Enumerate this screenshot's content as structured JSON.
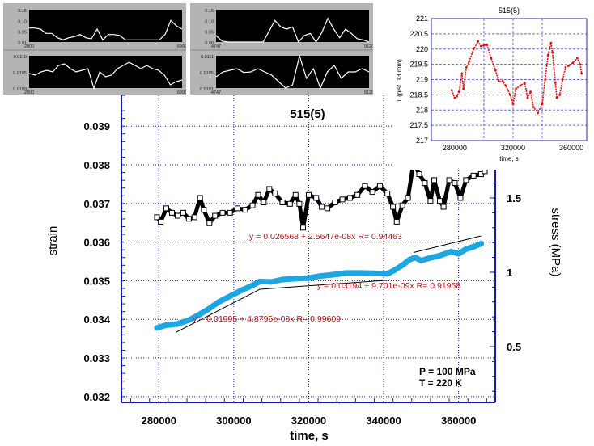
{
  "chart_data": [
    {
      "type": "scatter",
      "title": "515(5)",
      "xlabel": "time, s",
      "ylabel": "strain",
      "y2label": "stress (MPa)",
      "xlim": [
        270000,
        369800
      ],
      "ylim": [
        0.03185,
        0.0398
      ],
      "y2lim": [
        0.125,
        2.19
      ],
      "xticks": [
        280000,
        300000,
        320000,
        340000,
        360000
      ],
      "yticks": [
        0.032,
        0.033,
        0.034,
        0.035,
        0.036,
        0.037,
        0.038,
        0.039
      ],
      "y2ticks": [
        0.5,
        1,
        1.5
      ],
      "grid": true,
      "annotations": [
        "P = 100 MPa",
        "T = 220 K"
      ],
      "series": [
        {
          "name": "stress",
          "axis": "right",
          "color": "#000000",
          "marker": "open-square",
          "x": [
            279500,
            280500,
            282000,
            283500,
            285000,
            286500,
            288000,
            289500,
            291000,
            292000,
            293500,
            295000,
            297000,
            299000,
            301000,
            303000,
            305000,
            306500,
            308000,
            309500,
            311000,
            313000,
            315000,
            316500,
            317500,
            318500,
            320000,
            322000,
            323500,
            325000,
            327000,
            329000,
            331000,
            333000,
            335000,
            337000,
            339000,
            341000,
            342500,
            343500,
            345000,
            346500,
            348000,
            349500,
            351000,
            352500,
            353500,
            355000,
            356000,
            357500,
            359000,
            360500,
            362000,
            364000,
            366000,
            367000
          ],
          "values": [
            1.37,
            1.34,
            1.43,
            1.4,
            1.38,
            1.4,
            1.36,
            1.37,
            1.5,
            1.42,
            1.33,
            1.38,
            1.4,
            1.4,
            1.43,
            1.42,
            1.45,
            1.52,
            1.47,
            1.56,
            1.53,
            1.47,
            1.46,
            1.52,
            1.46,
            1.3,
            1.52,
            1.5,
            1.44,
            1.43,
            1.47,
            1.49,
            1.5,
            1.52,
            1.58,
            1.54,
            1.58,
            1.53,
            1.44,
            1.34,
            1.45,
            1.5,
            1.74,
            1.66,
            1.6,
            1.48,
            1.62,
            1.48,
            1.44,
            1.62,
            1.6,
            1.5,
            1.62,
            1.65,
            1.66,
            1.68
          ]
        },
        {
          "name": "strain",
          "axis": "left",
          "color": "#1ea6e0",
          "marker": "filled-circle",
          "x": [
            279500,
            282000,
            285000,
            288000,
            290000,
            293000,
            296000,
            299000,
            302000,
            305000,
            307000,
            310000,
            313000,
            316000,
            320000,
            323000,
            326000,
            330000,
            334000,
            338000,
            341000,
            342500,
            345000,
            347000,
            348500,
            350000,
            352000,
            355000,
            358000,
            360000,
            362000,
            364000,
            366000
          ],
          "values": [
            0.03378,
            0.03385,
            0.03388,
            0.03398,
            0.03408,
            0.03425,
            0.03445,
            0.0346,
            0.03475,
            0.03488,
            0.03498,
            0.03497,
            0.03503,
            0.03505,
            0.03507,
            0.03512,
            0.03515,
            0.0352,
            0.0352,
            0.03519,
            0.03518,
            0.03525,
            0.0354,
            0.03555,
            0.0356,
            0.03552,
            0.03558,
            0.03565,
            0.03575,
            0.0357,
            0.03582,
            0.03588,
            0.03596
          ]
        }
      ],
      "fits": [
        {
          "label": "y = 0.01995 + 4.8795e-08x   R= 0.99609",
          "x": [
            284500,
            307000
          ],
          "y": [
            0.03366,
            0.03478
          ]
        },
        {
          "label": "y = 0.03194 + 9.701e-09x   R= 0.91958",
          "x": [
            307000,
            342000
          ],
          "y": [
            0.03478,
            0.03502
          ]
        },
        {
          "label": "y = 0.026568 + 2.5647e-08x   R= 0.94463",
          "x": [
            348000,
            366000
          ],
          "y": [
            0.03573,
            0.03616
          ]
        }
      ]
    },
    {
      "type": "scatter",
      "title": "515(5)",
      "xlabel": "time, s",
      "ylabel": "T (pist. 13 mm)",
      "xlim": [
        264000,
        370500
      ],
      "ylim": [
        217.0,
        221.0
      ],
      "xticks": [
        280000,
        320000,
        360000
      ],
      "yticks": [
        217.0,
        217.5,
        218.0,
        218.5,
        219.0,
        219.5,
        220.0,
        220.5,
        221.0
      ],
      "grid": true,
      "series": [
        {
          "name": "T",
          "color": "#e01010",
          "x": [
            278000,
            280000,
            281500,
            283000,
            285000,
            286000,
            288000,
            290000,
            293000,
            296000,
            298000,
            300000,
            302000,
            305000,
            308000,
            310000,
            313000,
            315000,
            318000,
            320000,
            322000,
            325000,
            328000,
            330000,
            332000,
            334000,
            337000,
            340000,
            342000,
            344000,
            346000,
            347000,
            349000,
            350000,
            352000,
            354000,
            356000,
            358000,
            361000,
            364000,
            366000,
            367000
          ],
          "values": [
            218.65,
            218.4,
            218.45,
            218.6,
            219.2,
            218.7,
            219.4,
            219.6,
            220.0,
            220.25,
            220.1,
            220.12,
            220.15,
            219.7,
            219.3,
            218.95,
            218.95,
            218.8,
            218.5,
            218.2,
            218.7,
            218.8,
            218.9,
            218.4,
            218.6,
            218.1,
            217.9,
            218.2,
            219.0,
            219.8,
            220.2,
            219.9,
            218.9,
            218.4,
            218.5,
            219.0,
            219.4,
            219.45,
            219.55,
            219.7,
            219.5,
            219.2
          ]
        }
      ]
    },
    {
      "type": "line",
      "panel": "thumb-a-top",
      "yticks": [
        "0.15",
        "0.10",
        "0.05",
        "0.01"
      ],
      "xticks": [
        "2000",
        "6999"
      ],
      "ylim": [
        0.0,
        0.15
      ],
      "values": [
        0.065,
        0.065,
        0.06,
        0.04,
        0.04,
        0.02,
        0.01,
        0.02,
        0.025,
        0.035,
        0.02,
        0.015,
        0.06,
        0.01,
        0.035,
        0.035,
        0.03,
        0.01,
        0.01,
        0.01,
        0.01,
        0.01,
        0.01,
        0.01,
        0.035,
        0.1,
        0.075,
        0.06
      ]
    },
    {
      "type": "line",
      "panel": "thumb-a-bottom",
      "yticks": [
        "0.0110",
        "0.0105",
        "0.0100"
      ],
      "xticks": [
        "2000",
        "6999"
      ],
      "ylim": [
        0.01,
        0.011
      ],
      "values": [
        0.01045,
        0.0104,
        0.0105,
        0.01055,
        0.0105,
        0.0107,
        0.01075,
        0.0106,
        0.0105,
        0.01055,
        0.0106,
        0.01,
        0.0105,
        0.01035,
        0.0104,
        0.0106,
        0.0107,
        0.0108,
        0.0107,
        0.0106,
        0.0107,
        0.0106,
        0.01055,
        0.0104,
        0.0101,
        0.0102,
        0.01025
      ]
    },
    {
      "type": "line",
      "panel": "thumb-b-top",
      "yticks": [
        "0.15",
        "0.10",
        "0.05",
        "0.00"
      ],
      "xticks": [
        "4747",
        "9120"
      ],
      "ylim": [
        0.0,
        0.15
      ],
      "values": [
        0.03,
        0.005,
        0.0,
        0.0,
        0.0,
        0.0,
        0.0,
        0.0,
        0.0,
        0.05,
        0.1,
        0.07,
        0.06,
        0.07,
        0.0,
        0.03,
        0.04,
        0.0,
        0.045,
        0.11,
        0.06,
        0.02,
        0.06,
        0.04,
        0.015,
        0.01,
        0.0
      ]
    },
    {
      "type": "line",
      "panel": "thumb-b-bottom",
      "yticks": [
        "0.0111",
        "0.0105",
        "0.0101"
      ],
      "xticks": [
        "4747",
        "9120"
      ],
      "ylim": [
        0.0101,
        0.0111
      ],
      "values": [
        0.01045,
        0.0106,
        0.01065,
        0.0107,
        0.01058,
        0.0106,
        0.0107,
        0.0106,
        0.0105,
        0.0103,
        0.0101,
        0.0102,
        0.0111,
        0.0104,
        0.0107,
        0.0101,
        0.0106,
        0.0108,
        0.0104,
        0.0106,
        0.0106,
        0.0107,
        0.0106
      ]
    }
  ]
}
